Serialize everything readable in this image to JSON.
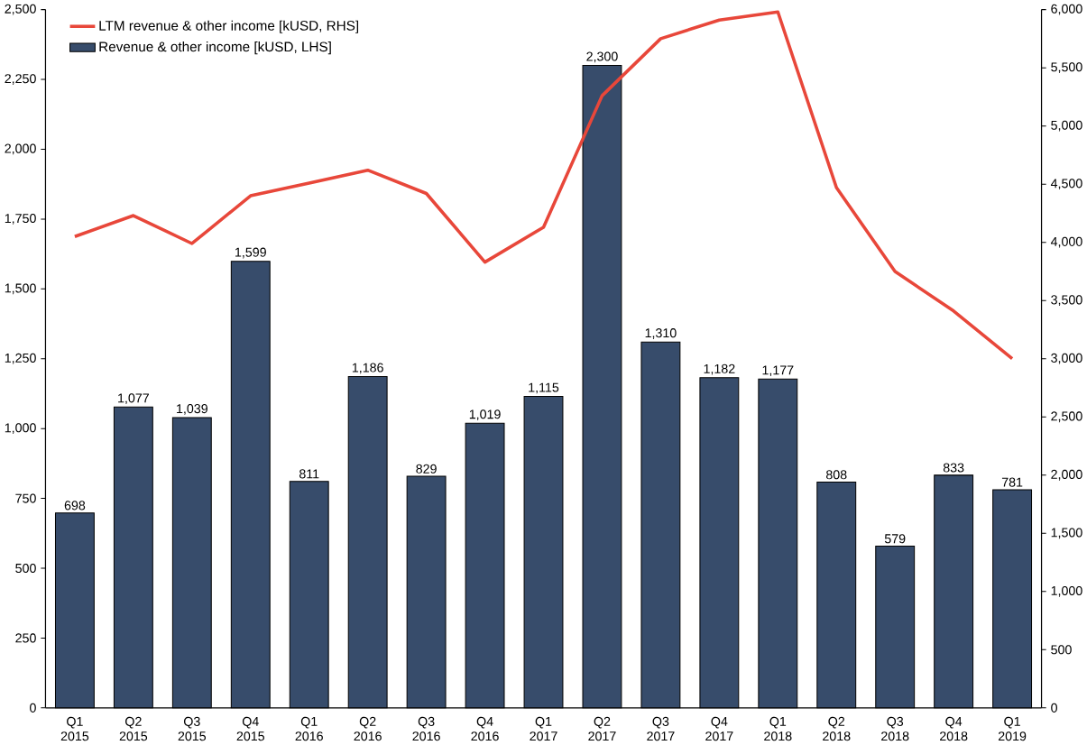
{
  "chart_data": {
    "type": "bar",
    "categories": [
      "Q1 2015",
      "Q2 2015",
      "Q3 2015",
      "Q4 2015",
      "Q1 2016",
      "Q2 2016",
      "Q3 2016",
      "Q4 2016",
      "Q1 2017",
      "Q2 2017",
      "Q3 2017",
      "Q4 2017",
      "Q1 2018",
      "Q2 2018",
      "Q3 2018",
      "Q4 2018",
      "Q1 2019"
    ],
    "series": [
      {
        "name": "LTM revenue & other income [kUSD, RHS]",
        "type": "line",
        "axis": "y2",
        "color": "#e8473a",
        "values": [
          4050,
          4230,
          3990,
          4400,
          4510,
          4620,
          4420,
          3830,
          4130,
          5260,
          5750,
          5910,
          5980,
          4470,
          3750,
          3410,
          3000
        ]
      },
      {
        "name": "Revenue & other income [kUSD, LHS]",
        "color": "#374c6b",
        "values": [
          698,
          1077,
          1039,
          1599,
          811,
          1186,
          829,
          1019,
          1115,
          2300,
          1310,
          1182,
          1177,
          808,
          579,
          833,
          781
        ],
        "value_labels": [
          "698",
          "1,077",
          "1,039",
          "1,599",
          "811",
          "1,186",
          "829",
          "1,019",
          "1,115",
          "2,300",
          "1,310",
          "1,182",
          "1,177",
          "808",
          "579",
          "833",
          "781"
        ]
      }
    ],
    "legend": "top left",
    "ylim": [
      0,
      2500
    ],
    "yticks": [
      0,
      250,
      500,
      750,
      {
        "value": 1000,
        "label": "1,000"
      },
      {
        "value": 1250,
        "label": "1,250"
      },
      {
        "value": 1500,
        "label": "1,500"
      },
      {
        "value": 1750,
        "label": "1,750"
      },
      {
        "value": 2000,
        "label": "2,000"
      },
      {
        "value": 2250,
        "label": "2,250"
      },
      {
        "value": 2500,
        "label": "2,500"
      }
    ],
    "y2lim": [
      0,
      6000
    ],
    "y2ticks": [
      0,
      500,
      {
        "value": 1000,
        "label": "1,000"
      },
      {
        "value": 1500,
        "label": "1,500"
      },
      {
        "value": 2000,
        "label": "2,000"
      },
      {
        "value": 2500,
        "label": "2,500"
      },
      {
        "value": 3000,
        "label": "3,000"
      },
      {
        "value": 3500,
        "label": "3,500"
      },
      {
        "value": 4000,
        "label": "4,000"
      },
      {
        "value": 4500,
        "label": "4,500"
      },
      {
        "value": 5000,
        "label": "5,000"
      },
      {
        "value": 5500,
        "label": "5,500"
      },
      {
        "value": 6000,
        "label": "6,000"
      }
    ]
  }
}
